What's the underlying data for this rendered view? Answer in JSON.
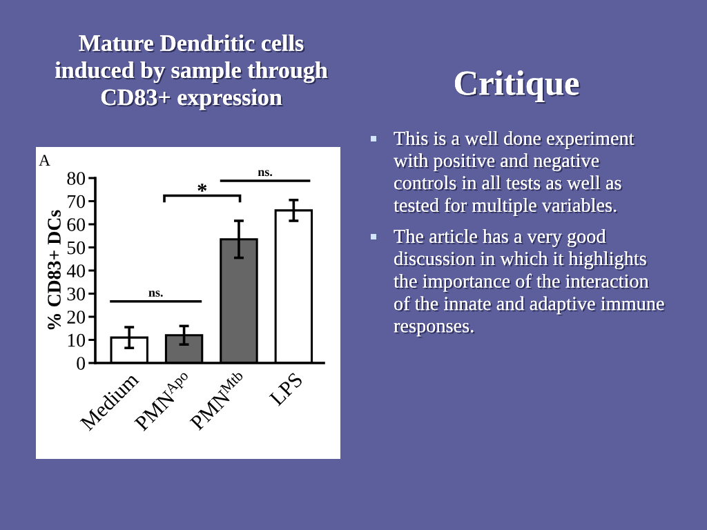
{
  "chart_data": {
    "type": "bar",
    "title": "Mature Dendritic cells induced by sample through CD83+ expression",
    "ylabel": "% CD83+ DCs",
    "categories": [
      "Medium",
      "PMN$^{Apo}$",
      "PMN$^{Mtb}$",
      "LPS"
    ],
    "values": [
      11,
      12,
      53.5,
      66
    ],
    "errors": [
      4.5,
      4,
      8,
      4.5
    ],
    "colors": [
      "#ffffff",
      "#666666",
      "#666666",
      "#ffffff"
    ],
    "ylim": [
      0,
      80
    ],
    "yticks": [
      0,
      10,
      20,
      30,
      40,
      50,
      60,
      70,
      80
    ],
    "grid": false,
    "annotations": [
      "A",
      "ns.",
      "*",
      "ns.",
      "Critique",
      "This is a well done experiment with positive and negative controls in all tests as well as tested for multiple variables.",
      "The article has a very good discussion in which it highlights the importance of the interaction of the innate and adaptive immune responses."
    ]
  }
}
